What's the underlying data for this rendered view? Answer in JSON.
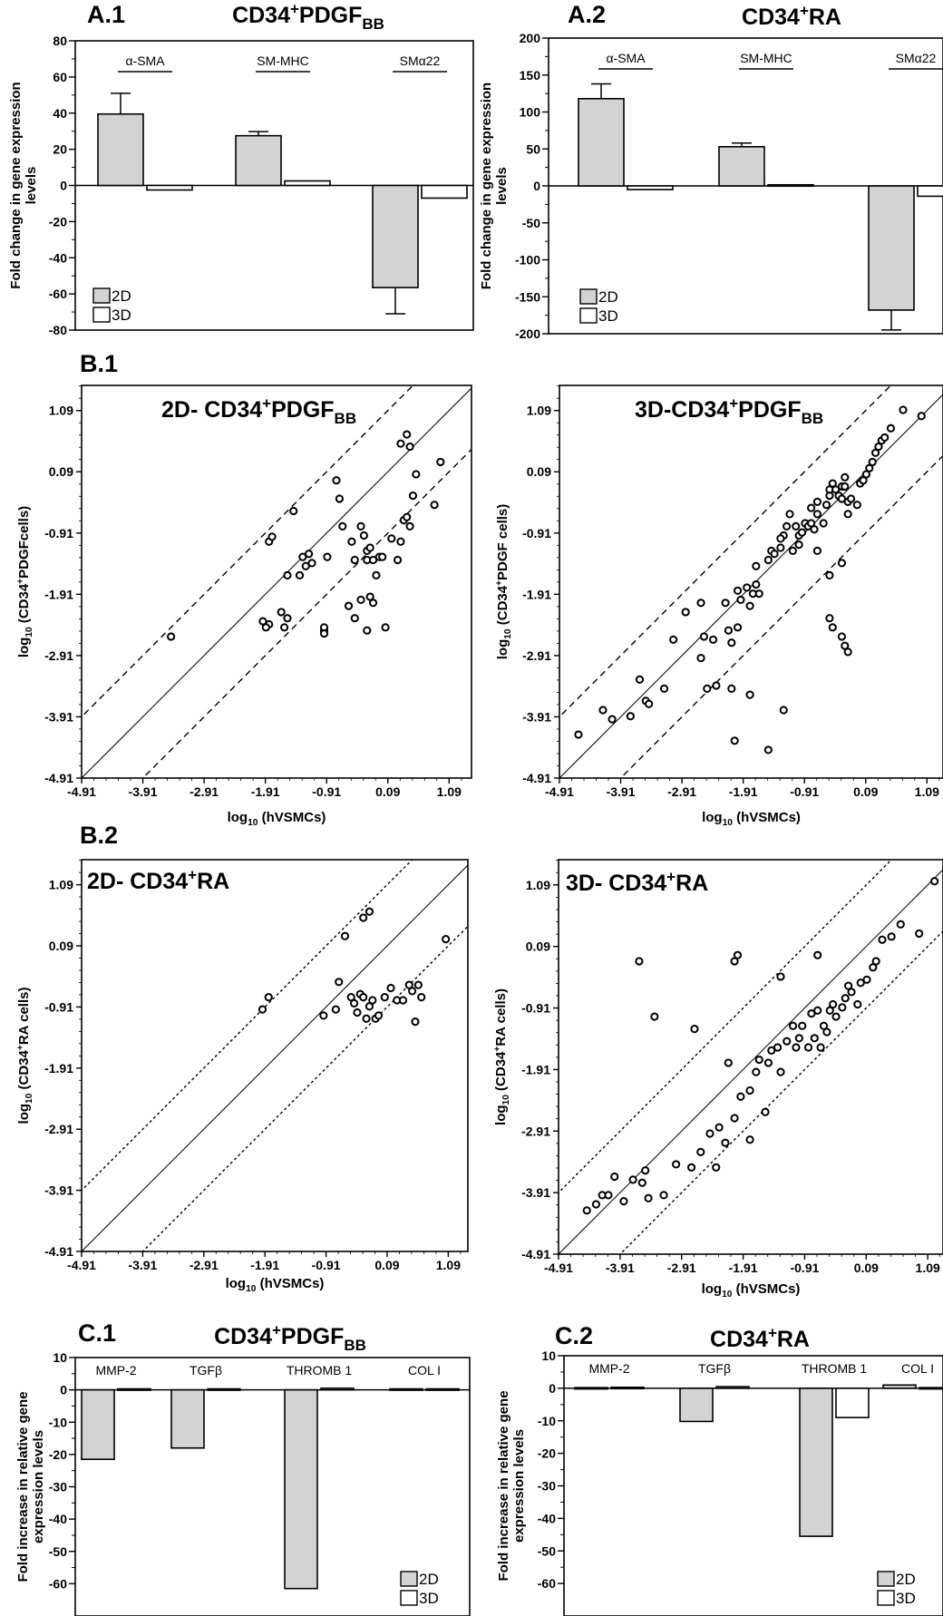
{
  "panel_labels": [
    "A.1",
    "A.2",
    "B.1",
    "B.2",
    "C.1",
    "C.2"
  ],
  "chart_data": [
    {
      "id": "A1",
      "type": "bar",
      "label": "A.1",
      "title": "CD34+PDGFBB",
      "ylabel": "Fold change in gene expression levels",
      "xlabel": "",
      "ylim": [
        -80,
        80
      ],
      "yticks": [
        "80",
        "60",
        "40",
        "20",
        "0",
        "-20",
        "-40",
        "-60",
        "-80"
      ],
      "categories": [
        "α-SMA",
        "SM-MHC",
        "SMα22"
      ],
      "series": [
        {
          "name": "2D",
          "color": "#d3d3d3",
          "values": [
            39.5,
            27.5,
            -56.5
          ],
          "errors": [
            11.5,
            2.3,
            14.5
          ]
        },
        {
          "name": "3D",
          "color": "#ffffff",
          "values": [
            -2.5,
            2.5,
            -7.0
          ],
          "errors": [
            0,
            0,
            0
          ]
        }
      ],
      "legend": "bottom-left"
    },
    {
      "id": "A2",
      "type": "bar",
      "label": "A.2",
      "title": "CD34+RA",
      "ylabel": "Fold change in gene expression levels",
      "xlabel": "",
      "ylim": [
        -200,
        200
      ],
      "yticks": [
        "200",
        "150",
        "100",
        "50",
        "0",
        "-50",
        "-100",
        "-150",
        "-200"
      ],
      "categories": [
        "α-SMA",
        "SM-MHC",
        "SMα22"
      ],
      "series": [
        {
          "name": "2D",
          "color": "#d3d3d3",
          "values": [
            118,
            53,
            -168
          ],
          "errors": [
            20,
            5,
            27
          ]
        },
        {
          "name": "3D",
          "color": "#ffffff",
          "values": [
            -5,
            1.5,
            -14
          ],
          "errors": [
            0,
            0,
            0
          ]
        }
      ],
      "legend": "bottom-left"
    },
    {
      "id": "B1L",
      "type": "scatter",
      "label": "B.1",
      "title": "2D- CD34+PDGFBB",
      "xlabel": "log10 (hVSMCs)",
      "ylabel": "log10 (CD34+PDGFcells)",
      "xlim": [
        -4.91,
        1.5
      ],
      "ylim": [
        -4.91,
        1.5
      ],
      "ticks": [
        "-4.91",
        "-3.91",
        "-2.91",
        "-1.91",
        "-0.91",
        "0.09",
        "1.09"
      ],
      "dash": "dashed",
      "x": [
        -3.45,
        -1.85,
        -1.8,
        -1.95,
        -1.65,
        -1.55,
        -1.6,
        -1.55,
        -1.85,
        -1.9,
        -1.45,
        -1.35,
        -1.3,
        -1.2,
        -1.15,
        -1.25,
        -0.95,
        -0.95,
        -0.95,
        -0.9,
        -0.75,
        -0.7,
        -0.65,
        -0.55,
        -0.5,
        -0.45,
        -0.45,
        -0.35,
        -0.3,
        -0.25,
        -0.25,
        -0.35,
        -0.2,
        -0.15,
        -0.05,
        -0.15,
        -0.2,
        -0.25,
        -0.1,
        0.0,
        0.05,
        0.15,
        0.25,
        0.3,
        0.35,
        0.4,
        0.45,
        0.5,
        0.55,
        0.45,
        0.3,
        0.4,
        0.85,
        0.95
      ],
      "y": [
        -2.6,
        -1.05,
        -0.97,
        -2.35,
        -2.2,
        -2.3,
        -2.45,
        -1.6,
        -2.4,
        -2.45,
        -0.55,
        -1.6,
        -1.3,
        -1.25,
        -1.4,
        -1.45,
        -2.5,
        -2.45,
        -2.55,
        -1.3,
        -0.05,
        -0.35,
        -0.8,
        -2.1,
        -1.05,
        -1.35,
        -2.3,
        -0.8,
        -0.95,
        -1.2,
        -1.35,
        -2.0,
        -1.15,
        -1.35,
        -1.3,
        -2.05,
        -1.95,
        -2.5,
        -1.6,
        -1.3,
        -2.45,
        -1.0,
        -1.35,
        -1.05,
        -0.7,
        -0.65,
        -0.8,
        -0.3,
        0.05,
        0.5,
        0.55,
        0.7,
        -0.45,
        0.25
      ]
    },
    {
      "id": "B1R",
      "type": "scatter",
      "title": "3D-CD34+PDGFBB",
      "xlabel": "log10 (hVSMCs)",
      "ylabel": "log10 (CD34+PDGF cells)",
      "xlim": [
        -4.91,
        1.2
      ],
      "ylim": [
        -4.91,
        1.5
      ],
      "ticks": [
        "-4.91",
        "-3.91",
        "-2.91",
        "-1.91",
        "-0.91",
        "0.09",
        "1.09"
      ],
      "dash": "dashed",
      "x": [
        -4.6,
        -4.2,
        -4.05,
        -3.75,
        -3.6,
        -3.5,
        -3.45,
        -3.2,
        -3.05,
        -2.85,
        -2.6,
        -2.55,
        -2.5,
        -2.4,
        -2.35,
        -2.2,
        -2.15,
        -2.1,
        -2.0,
        -2.0,
        -1.95,
        -1.85,
        -1.8,
        -1.75,
        -1.7,
        -1.7,
        -1.65,
        -1.5,
        -1.45,
        -1.4,
        -1.3,
        -1.25,
        -1.2,
        -1.15,
        -1.1,
        -1.05,
        -1.0,
        -0.95,
        -0.9,
        -0.85,
        -0.8,
        -0.8,
        -0.75,
        -0.7,
        -0.7,
        -0.6,
        -0.55,
        -0.5,
        -0.5,
        -0.45,
        -0.4,
        -0.35,
        -0.3,
        -0.3,
        -0.25,
        -0.25,
        -0.2,
        -0.2,
        -0.15,
        -0.05,
        0.0,
        0.05,
        0.1,
        0.15,
        0.2,
        0.25,
        0.3,
        0.35,
        0.4,
        0.5,
        0.7,
        1.0,
        -2.6,
        -2.1,
        -1.8,
        -2.05,
        -1.5,
        -1.25,
        -0.5,
        -0.45,
        -0.3,
        -0.25,
        -0.2,
        -0.5,
        -0.3,
        -0.7,
        -1.0,
        -1.3
      ],
      "y": [
        -4.2,
        -3.8,
        -3.95,
        -3.9,
        -3.3,
        -3.65,
        -3.7,
        -3.45,
        -2.65,
        -2.2,
        -2.05,
        -2.6,
        -3.45,
        -2.65,
        -3.4,
        -2.05,
        -2.5,
        -2.7,
        -2.45,
        -1.85,
        -2.0,
        -1.8,
        -2.1,
        -1.9,
        -1.45,
        -1.75,
        -1.9,
        -1.35,
        -1.2,
        -1.25,
        -1.15,
        -0.95,
        -0.8,
        -0.6,
        -1.2,
        -0.8,
        -0.95,
        -0.9,
        -0.75,
        -0.8,
        -0.75,
        -0.5,
        -0.85,
        -0.6,
        -0.4,
        -0.75,
        -0.45,
        -0.3,
        -0.2,
        -0.1,
        -0.2,
        -0.3,
        -0.35,
        -0.15,
        0.0,
        -0.15,
        -0.4,
        -0.6,
        -0.35,
        -0.45,
        -0.1,
        -0.05,
        0.05,
        0.15,
        0.25,
        0.4,
        0.5,
        0.6,
        0.65,
        0.8,
        1.1,
        1.0,
        -2.95,
        -3.45,
        -3.55,
        -4.3,
        -4.45,
        -3.8,
        -2.3,
        -2.45,
        -2.6,
        -2.75,
        -2.85,
        -1.6,
        -1.4,
        -1.2,
        -1.1,
        -1.0
      ]
    },
    {
      "id": "B2L",
      "type": "scatter",
      "label": "B.2",
      "title": "2D- CD34+RA",
      "xlabel": "log10 (hVSMCs)",
      "ylabel": "log10 (CD34+RA cells)",
      "xlim": [
        -4.91,
        1.5
      ],
      "ylim": [
        -4.91,
        1.5
      ],
      "ticks": [
        "-4.91",
        "-3.91",
        "-2.91",
        "-1.91",
        "-0.91",
        "0.09",
        "1.09"
      ],
      "dash": "dotted",
      "x": [
        -1.95,
        -1.85,
        -0.95,
        -0.75,
        -0.7,
        -0.5,
        -0.45,
        -0.4,
        -0.35,
        -0.3,
        -0.25,
        -0.2,
        -0.15,
        -0.1,
        -0.05,
        0.05,
        0.15,
        0.25,
        0.35,
        0.45,
        0.5,
        0.55,
        0.6,
        0.65,
        1.05,
        -0.6,
        -0.3,
        -0.2
      ],
      "y": [
        -0.95,
        -0.75,
        -1.05,
        -0.95,
        -0.5,
        -0.75,
        -0.85,
        -1.0,
        -0.7,
        -0.75,
        -1.1,
        -0.9,
        -0.8,
        -1.1,
        -1.05,
        -0.75,
        -0.6,
        -0.8,
        -0.8,
        -0.55,
        -0.65,
        -1.15,
        -0.55,
        -0.75,
        0.2,
        0.25,
        0.55,
        0.65
      ]
    },
    {
      "id": "B2R",
      "type": "scatter",
      "title": "3D- CD34+RA",
      "xlabel": "log10 (hVSMCs)",
      "ylabel": "log10 (CD34+RA cells)",
      "xlim": [
        -4.91,
        1.2
      ],
      "ylim": [
        -4.91,
        1.5
      ],
      "ticks": [
        "-4.91",
        "-3.91",
        "-2.91",
        "-1.91",
        "-0.91",
        "0.09",
        "1.09"
      ],
      "dash": "dotted",
      "x": [
        -4.45,
        -4.3,
        -4.2,
        -4.1,
        -4.0,
        -3.85,
        -3.7,
        -3.55,
        -3.5,
        -3.45,
        -3.2,
        -3.0,
        -2.75,
        -2.6,
        -2.45,
        -2.35,
        -2.2,
        -2.05,
        -1.95,
        -1.8,
        -1.7,
        -1.65,
        -1.5,
        -1.45,
        -1.35,
        -1.3,
        -1.2,
        -1.1,
        -1.05,
        -1.0,
        -0.95,
        -0.85,
        -0.8,
        -0.75,
        -0.7,
        -0.65,
        -0.6,
        -0.55,
        -0.5,
        -0.45,
        -0.4,
        -0.3,
        -0.25,
        -0.2,
        -0.15,
        -0.05,
        0.0,
        0.1,
        0.2,
        0.25,
        0.35,
        0.5,
        0.65,
        0.95,
        1.2,
        -3.6,
        -3.35,
        -2.0,
        -2.05,
        -1.3,
        -0.7,
        -2.3,
        -1.8,
        -1.55,
        -2.7,
        -2.15
      ],
      "y": [
        -4.2,
        -4.1,
        -3.95,
        -3.95,
        -3.65,
        -4.05,
        -3.7,
        -3.75,
        -3.55,
        -4.0,
        -3.95,
        -3.45,
        -3.5,
        -3.25,
        -2.95,
        -3.5,
        -3.1,
        -2.7,
        -2.35,
        -2.25,
        -1.95,
        -1.75,
        -1.8,
        -1.6,
        -1.55,
        -1.95,
        -1.45,
        -1.2,
        -1.55,
        -1.4,
        -1.2,
        -1.55,
        -1.0,
        -1.4,
        -0.95,
        -1.55,
        -1.2,
        -1.3,
        -0.95,
        -0.85,
        -1.05,
        -0.9,
        -0.75,
        -0.55,
        -0.65,
        -0.85,
        -0.5,
        -0.45,
        -0.25,
        -0.15,
        0.2,
        0.25,
        0.45,
        0.3,
        1.15,
        -0.15,
        -1.05,
        -0.05,
        -0.15,
        -0.4,
        -0.05,
        -2.85,
        -3.05,
        -2.6,
        -1.25,
        -1.8
      ]
    },
    {
      "id": "C1",
      "type": "bar",
      "label": "C.1",
      "title": "CD34+PDGFBB",
      "ylabel": "Fold increase in relative gene expression levels",
      "xlabel": "",
      "ylim": [
        -70,
        10
      ],
      "yticks": [
        "10",
        "0",
        "-10",
        "-20",
        "-30",
        "-40",
        "-50",
        "-60"
      ],
      "categories": [
        "MMP-2",
        "TGFβ",
        "THROMB 1",
        "COL I"
      ],
      "series": [
        {
          "name": "2D",
          "color": "#d3d3d3",
          "values": [
            -21.5,
            -18.0,
            -61.5,
            0.3
          ]
        },
        {
          "name": "3D",
          "color": "#ffffff",
          "values": [
            0.3,
            0.3,
            0.5,
            0.3
          ]
        }
      ],
      "legend": "bottom-right"
    },
    {
      "id": "C2",
      "type": "bar",
      "label": "C.2",
      "title": "CD34+RA",
      "ylabel": "Fold increase in relative gene expression levels",
      "xlabel": "",
      "ylim": [
        -70,
        10
      ],
      "yticks": [
        "10",
        "0",
        "-10",
        "-20",
        "-30",
        "-40",
        "-50",
        "-60"
      ],
      "categories": [
        "MMP-2",
        "TGFβ",
        "THROMB 1",
        "COL I"
      ],
      "series": [
        {
          "name": "2D",
          "color": "#d3d3d3",
          "values": [
            0.2,
            -10.2,
            -45.5,
            1.0
          ]
        },
        {
          "name": "3D",
          "color": "#ffffff",
          "values": [
            0.3,
            0.5,
            -9.0,
            0.2
          ]
        }
      ],
      "legend": "bottom-right"
    }
  ]
}
